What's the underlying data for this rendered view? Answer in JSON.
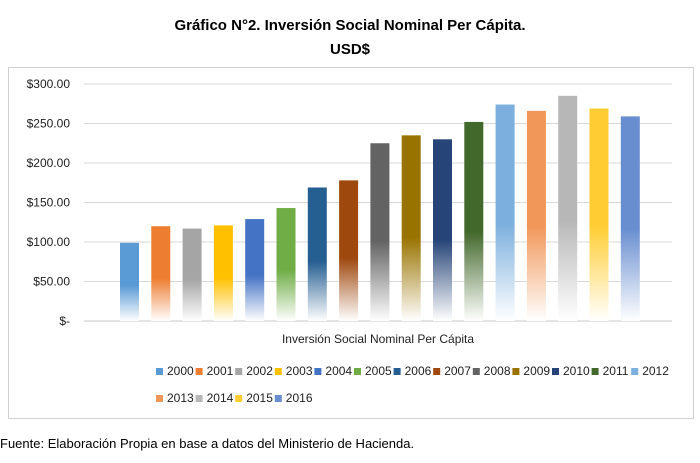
{
  "chart_data": {
    "type": "bar",
    "title": "Gráfico N°2. Inversión Social Nominal Per Cápita.",
    "subtitle": "USD$",
    "xlabel": "Inversión Social Nominal Per Cápita",
    "ylabel": "",
    "ylim": [
      0,
      300
    ],
    "yticks": [
      "$-",
      "$50.00",
      "$100.00",
      "$150.00",
      "$200.00",
      "$250.00",
      "$300.00"
    ],
    "grid": true,
    "legend_position": "bottom",
    "series": [
      {
        "name": "2000",
        "value": 99,
        "color": "#5b9bd5"
      },
      {
        "name": "2001",
        "value": 120,
        "color": "#ed7d31"
      },
      {
        "name": "2002",
        "value": 117,
        "color": "#a5a5a5"
      },
      {
        "name": "2003",
        "value": 121,
        "color": "#ffc000"
      },
      {
        "name": "2004",
        "value": 129,
        "color": "#4472c4"
      },
      {
        "name": "2005",
        "value": 143,
        "color": "#70ad47"
      },
      {
        "name": "2006",
        "value": 169,
        "color": "#255e91"
      },
      {
        "name": "2007",
        "value": 178,
        "color": "#9e480e"
      },
      {
        "name": "2008",
        "value": 225,
        "color": "#636363"
      },
      {
        "name": "2009",
        "value": 235,
        "color": "#997300"
      },
      {
        "name": "2010",
        "value": 230,
        "color": "#264478"
      },
      {
        "name": "2011",
        "value": 252,
        "color": "#43682b"
      },
      {
        "name": "2012",
        "value": 274,
        "color": "#7cafdd"
      },
      {
        "name": "2013",
        "value": 266,
        "color": "#f1975a"
      },
      {
        "name": "2014",
        "value": 285,
        "color": "#b7b7b7"
      },
      {
        "name": "2015",
        "value": 269,
        "color": "#ffcd33"
      },
      {
        "name": "2016",
        "value": 259,
        "color": "#698ed0"
      }
    ]
  },
  "source_note": "Fuente: Elaboración Propia en base a datos del Ministerio de Hacienda."
}
